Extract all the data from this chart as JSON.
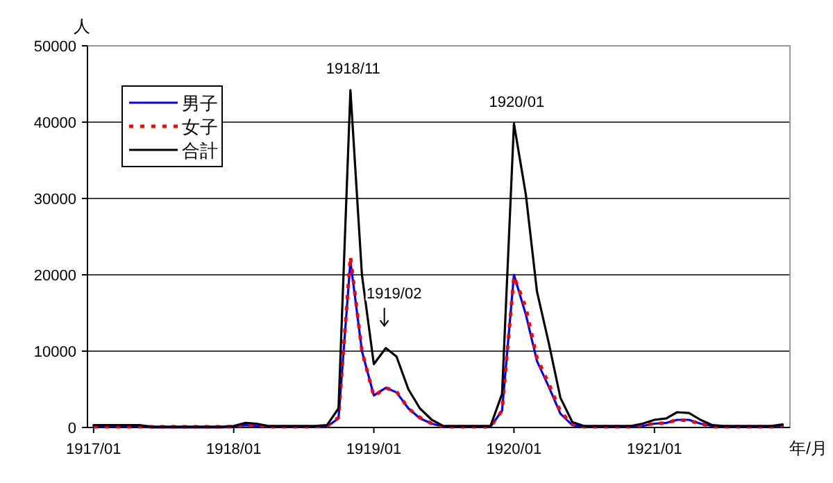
{
  "chart_data": {
    "type": "line",
    "ylabel": "人",
    "xlabel": "年/月",
    "x": [
      "1917-01",
      "1917-02",
      "1917-03",
      "1917-04",
      "1917-05",
      "1917-06",
      "1917-07",
      "1917-08",
      "1917-09",
      "1917-10",
      "1917-11",
      "1917-12",
      "1918-01",
      "1918-02",
      "1918-03",
      "1918-04",
      "1918-05",
      "1918-06",
      "1918-07",
      "1918-08",
      "1918-09",
      "1918-10",
      "1918-11",
      "1918-12",
      "1919-01",
      "1919-02",
      "1919-03",
      "1919-04",
      "1919-05",
      "1919-06",
      "1919-07",
      "1919-08",
      "1919-09",
      "1919-10",
      "1919-11",
      "1919-12",
      "1920-01",
      "1920-02",
      "1920-03",
      "1920-04",
      "1920-05",
      "1920-06",
      "1920-07",
      "1920-08",
      "1920-09",
      "1920-10",
      "1920-11",
      "1920-12",
      "1921-01",
      "1921-02",
      "1921-03",
      "1921-04",
      "1921-05",
      "1921-06",
      "1921-07",
      "1921-08",
      "1921-09",
      "1921-10",
      "1921-11",
      "1921-12"
    ],
    "series": [
      {
        "name": "男子",
        "color": "#0000ff",
        "line_style": "solid",
        "values": [
          200,
          200,
          200,
          200,
          200,
          0,
          0,
          0,
          0,
          0,
          0,
          0,
          100,
          300,
          200,
          100,
          100,
          100,
          100,
          100,
          100,
          1200,
          21800,
          10000,
          4200,
          5200,
          4600,
          2500,
          1200,
          500,
          100,
          100,
          100,
          100,
          100,
          2200,
          20000,
          14800,
          8700,
          5300,
          1800,
          300,
          100,
          100,
          100,
          100,
          100,
          200,
          500,
          600,
          1000,
          1000,
          500,
          200,
          100,
          100,
          100,
          100,
          100,
          200
        ]
      },
      {
        "name": "女子",
        "color": "#ff0000",
        "line_style": "dotted",
        "values": [
          100,
          100,
          100,
          100,
          100,
          100,
          100,
          100,
          100,
          100,
          100,
          100,
          100,
          300,
          300,
          100,
          100,
          100,
          100,
          100,
          200,
          1300,
          22400,
          10000,
          4100,
          5200,
          4700,
          2500,
          1300,
          500,
          100,
          100,
          100,
          100,
          100,
          2200,
          19800,
          15700,
          9100,
          5700,
          2100,
          400,
          100,
          100,
          100,
          100,
          100,
          300,
          500,
          600,
          1000,
          900,
          500,
          100,
          100,
          100,
          100,
          100,
          100,
          200
        ]
      },
      {
        "name": "合計",
        "color": "#000000",
        "line_style": "solid",
        "values": [
          300,
          300,
          300,
          300,
          300,
          100,
          100,
          100,
          100,
          100,
          100,
          100,
          200,
          600,
          500,
          200,
          200,
          200,
          200,
          200,
          300,
          2500,
          44200,
          20000,
          8300,
          10400,
          9300,
          5000,
          2500,
          1000,
          200,
          200,
          200,
          200,
          200,
          4400,
          39800,
          30500,
          17800,
          11000,
          3900,
          700,
          200,
          200,
          200,
          200,
          200,
          500,
          1000,
          1200,
          2000,
          1900,
          1000,
          300,
          200,
          200,
          200,
          200,
          200,
          400
        ]
      }
    ],
    "xlim": [
      "1916-12-16",
      "1921-12-20"
    ],
    "xticks": [
      {
        "value": "1917-01",
        "label": "1917/01"
      },
      {
        "value": "1918-01",
        "label": "1918/01"
      },
      {
        "value": "1919-01",
        "label": "1919/01"
      },
      {
        "value": "1920-01",
        "label": "1920/01"
      },
      {
        "value": "1921-01",
        "label": "1921/01"
      }
    ],
    "ylim": [
      0,
      50000
    ],
    "yticks": [
      0,
      10000,
      20000,
      30000,
      40000,
      50000
    ],
    "grid": "y",
    "legend": "top left",
    "annotations": [
      {
        "text": "1918/11",
        "x": "1918-11",
        "y": 44200
      },
      {
        "text": "1919/02",
        "x": "1919-02",
        "y": 10400
      },
      {
        "text": "1920/01",
        "x": "1920-01",
        "y": 39800
      }
    ]
  }
}
